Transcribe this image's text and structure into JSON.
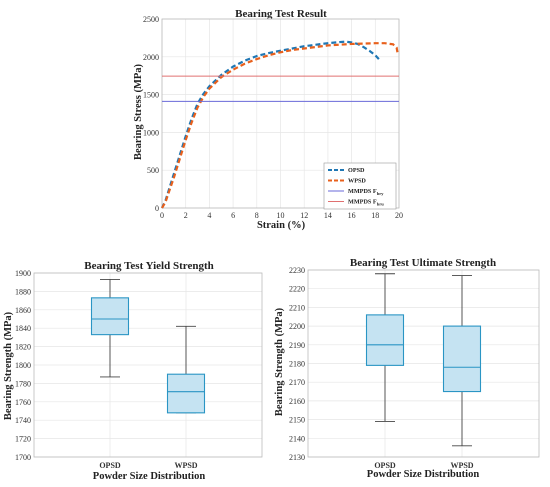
{
  "chart_data": [
    {
      "type": "line",
      "title": "Bearing Test Result",
      "xlabel": "Strain (%)",
      "ylabel": "Bearing Stress (MPa)",
      "xlim": [
        0,
        20
      ],
      "ylim": [
        0,
        2500
      ],
      "xticks": [
        0,
        2,
        4,
        6,
        8,
        10,
        12,
        14,
        16,
        18,
        20
      ],
      "yticks": [
        0,
        500,
        1000,
        1500,
        2000,
        2500
      ],
      "grid": true,
      "legend_position": "bottom-right",
      "series": [
        {
          "name": "OPSD",
          "style": "dashed",
          "color": "#1f77b4",
          "x": [
            0,
            0.3,
            0.6,
            1,
            1.5,
            2,
            2.5,
            3,
            3.5,
            4,
            5,
            6,
            7,
            8,
            9,
            10,
            11,
            12,
            13,
            14,
            15,
            15.5,
            16,
            16.5,
            17,
            17.5,
            18,
            18.3
          ],
          "y": [
            0,
            100,
            250,
            450,
            700,
            950,
            1180,
            1380,
            1510,
            1610,
            1760,
            1870,
            1950,
            2010,
            2050,
            2080,
            2110,
            2140,
            2160,
            2180,
            2195,
            2200,
            2190,
            2170,
            2130,
            2080,
            2020,
            1970
          ]
        },
        {
          "name": "WPSD",
          "style": "dashed",
          "color": "#e8601c",
          "x": [
            0,
            0.3,
            0.6,
            1,
            1.5,
            2,
            2.5,
            3,
            3.5,
            4,
            5,
            6,
            7,
            8,
            9,
            10,
            11,
            12,
            13,
            14,
            15,
            16,
            17,
            18,
            18.8,
            19.5,
            19.8,
            19.9
          ],
          "y": [
            0,
            80,
            220,
            400,
            650,
            900,
            1130,
            1330,
            1470,
            1580,
            1730,
            1830,
            1910,
            1970,
            2020,
            2060,
            2090,
            2110,
            2130,
            2150,
            2160,
            2170,
            2175,
            2180,
            2180,
            2165,
            2120,
            2030
          ]
        },
        {
          "name": "MMPDS F",
          "sub": "bry",
          "style": "solid",
          "color": "#6a6ad8",
          "x": [
            0,
            20
          ],
          "y": [
            1410,
            1410
          ]
        },
        {
          "name": "MMPDS F",
          "sub": "bru",
          "style": "solid",
          "color": "#e07070",
          "x": [
            0,
            20
          ],
          "y": [
            1745,
            1745
          ]
        }
      ]
    },
    {
      "type": "box",
      "title": "Bearing Test Yield Strength",
      "xlabel": "Powder Size Distribution",
      "ylabel": "Bearing Strength (MPa)",
      "categories": [
        "OPSD",
        "WPSD"
      ],
      "ylim": [
        1700,
        1900
      ],
      "yticks": [
        1700,
        1720,
        1740,
        1760,
        1780,
        1800,
        1820,
        1840,
        1860,
        1880,
        1900
      ],
      "grid": true,
      "boxes": [
        {
          "min": 1787,
          "q1": 1833,
          "median": 1850,
          "q3": 1873,
          "max": 1893
        },
        {
          "min": 1748,
          "q1": 1748,
          "median": 1771,
          "q3": 1790,
          "max": 1842
        }
      ]
    },
    {
      "type": "box",
      "title": "Bearing Test Ultimate Strength",
      "xlabel": "Powder Size Distribution",
      "ylabel": "Bearing Strength (MPa)",
      "categories": [
        "OPSD",
        "WPSD"
      ],
      "ylim": [
        2130,
        2230
      ],
      "yticks": [
        2130,
        2140,
        2150,
        2160,
        2170,
        2180,
        2190,
        2200,
        2210,
        2220,
        2230
      ],
      "grid": true,
      "boxes": [
        {
          "min": 2149,
          "q1": 2179,
          "median": 2190,
          "q3": 2206,
          "max": 2228
        },
        {
          "min": 2136,
          "q1": 2165,
          "median": 2178,
          "q3": 2200,
          "max": 2227
        }
      ]
    }
  ],
  "colors": {
    "box_fill": "#c5e3f2",
    "box_stroke": "#2a95c4",
    "whisker": "#444444"
  }
}
